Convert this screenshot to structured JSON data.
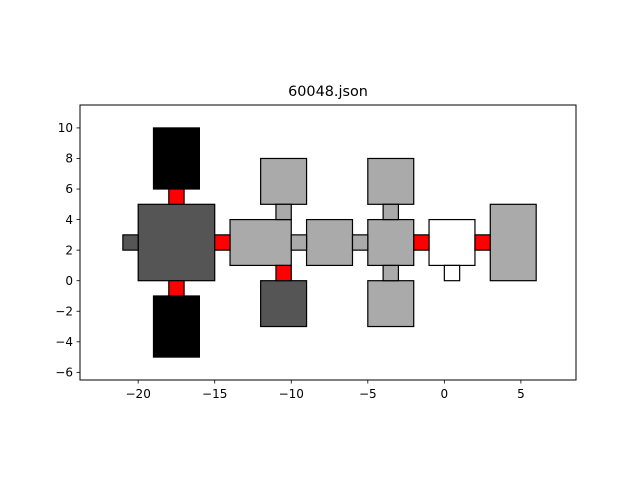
{
  "chart_data": {
    "type": "diagram",
    "title": "60048.json",
    "xlim": [
      -23.8,
      8.6
    ],
    "ylim": [
      -6.5,
      11.5
    ],
    "xticks": [
      -20,
      -15,
      -10,
      -5,
      0,
      5
    ],
    "yticks": [
      -6,
      -4,
      -2,
      0,
      2,
      4,
      6,
      8,
      10
    ],
    "xtick_labels": [
      "−20",
      "−15",
      "−10",
      "−5",
      "0",
      "5"
    ],
    "ytick_labels": [
      "−6",
      "−4",
      "−2",
      "0",
      "2",
      "4",
      "6",
      "8",
      "10"
    ],
    "grid": false,
    "colors": {
      "black": "#000000",
      "dark_gray": "#555555",
      "light_gray": "#aaaaaa",
      "red": "#ff0000",
      "white": "#ffffff"
    },
    "rooms": [
      {
        "x0": -19,
        "y0": 6,
        "x1": -16,
        "y1": 10,
        "fill": "black"
      },
      {
        "x0": -19,
        "y0": -5,
        "x1": -16,
        "y1": -1,
        "fill": "black"
      },
      {
        "x0": -20,
        "y0": 0,
        "x1": -15,
        "y1": 5,
        "fill": "dark_gray"
      },
      {
        "x0": -21,
        "y0": 2,
        "x1": -20,
        "y1": 3,
        "fill": "dark_gray"
      },
      {
        "x0": -14,
        "y0": 1,
        "x1": -10,
        "y1": 4,
        "fill": "light_gray"
      },
      {
        "x0": -12,
        "y0": 5,
        "x1": -9,
        "y1": 8,
        "fill": "light_gray"
      },
      {
        "x0": -12,
        "y0": -3,
        "x1": -9,
        "y1": 0,
        "fill": "dark_gray"
      },
      {
        "x0": -9,
        "y0": 1,
        "x1": -6,
        "y1": 4,
        "fill": "light_gray"
      },
      {
        "x0": -5,
        "y0": 1,
        "x1": -2,
        "y1": 4,
        "fill": "light_gray"
      },
      {
        "x0": -5,
        "y0": 5,
        "x1": -2,
        "y1": 8,
        "fill": "light_gray"
      },
      {
        "x0": -5,
        "y0": -3,
        "x1": -2,
        "y1": 0,
        "fill": "light_gray"
      },
      {
        "x0": -1,
        "y0": 1,
        "x1": 2,
        "y1": 4,
        "fill": "white"
      },
      {
        "x0": 0,
        "y0": 0,
        "x1": 1,
        "y1": 1,
        "fill": "white"
      },
      {
        "x0": 3,
        "y0": 0,
        "x1": 6,
        "y1": 5,
        "fill": "light_gray"
      }
    ],
    "connectors": [
      {
        "x0": -18,
        "y0": 5,
        "x1": -17,
        "y1": 6,
        "fill": "red"
      },
      {
        "x0": -18,
        "y0": -1,
        "x1": -17,
        "y1": 0,
        "fill": "red"
      },
      {
        "x0": -15,
        "y0": 2,
        "x1": -14,
        "y1": 3,
        "fill": "red"
      },
      {
        "x0": -11,
        "y0": 4,
        "x1": -10,
        "y1": 5,
        "fill": "light_gray"
      },
      {
        "x0": -11,
        "y0": 0,
        "x1": -10,
        "y1": 1,
        "fill": "red"
      },
      {
        "x0": -10,
        "y0": 2,
        "x1": -9,
        "y1": 3,
        "fill": "light_gray"
      },
      {
        "x0": -6,
        "y0": 2,
        "x1": -5,
        "y1": 3,
        "fill": "light_gray"
      },
      {
        "x0": -4,
        "y0": 4,
        "x1": -3,
        "y1": 5,
        "fill": "light_gray"
      },
      {
        "x0": -4,
        "y0": 0,
        "x1": -3,
        "y1": 1,
        "fill": "light_gray"
      },
      {
        "x0": -2,
        "y0": 2,
        "x1": -1,
        "y1": 3,
        "fill": "red"
      },
      {
        "x0": 2,
        "y0": 2,
        "x1": 3,
        "y1": 3,
        "fill": "red"
      }
    ]
  }
}
